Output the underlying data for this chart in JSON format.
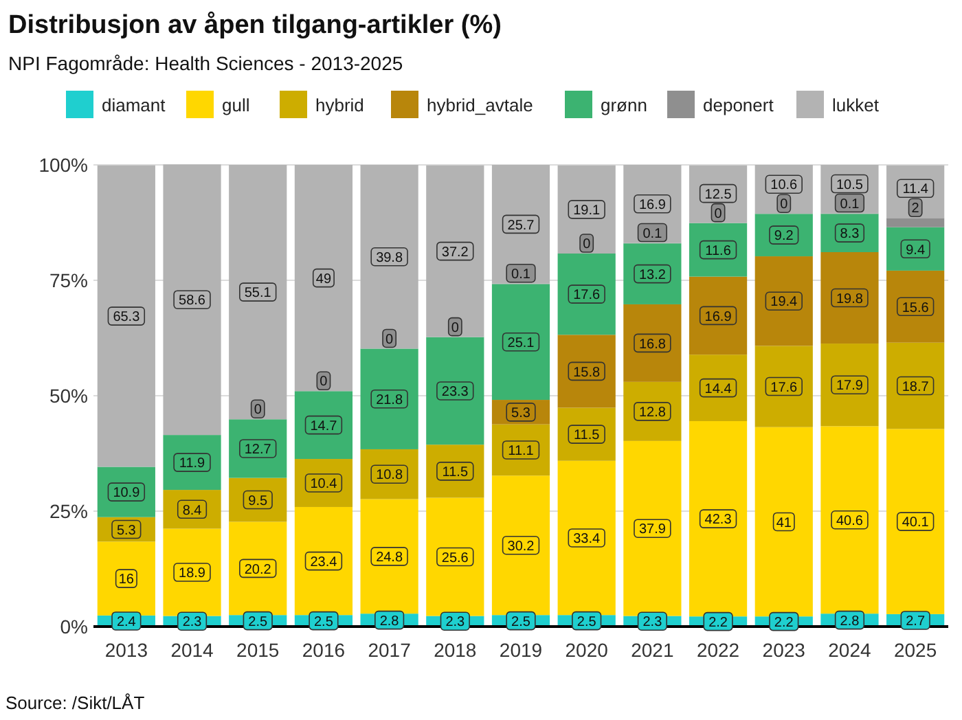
{
  "chart_data": {
    "type": "bar",
    "title": "Distribusjon av åpen tilgang-artikler (%)",
    "subtitle": "NPI Fagområde: Health Sciences - 2013-2025",
    "categories": [
      "2013",
      "2014",
      "2015",
      "2016",
      "2017",
      "2018",
      "2019",
      "2020",
      "2021",
      "2022",
      "2023",
      "2024",
      "2025"
    ],
    "series": [
      {
        "name": "diamant",
        "color": "#1fcfcf",
        "values": [
          2.4,
          2.3,
          2.5,
          2.5,
          2.8,
          2.3,
          2.5,
          2.5,
          2.3,
          2.2,
          2.2,
          2.8,
          2.7
        ]
      },
      {
        "name": "gull",
        "color": "#ffd700",
        "values": [
          16,
          18.9,
          20.2,
          23.4,
          24.8,
          25.6,
          30.2,
          33.4,
          37.9,
          42.3,
          41,
          40.6,
          40.1
        ]
      },
      {
        "name": "hybrid",
        "color": "#cdad00",
        "values": [
          5.3,
          8.4,
          9.5,
          10.4,
          10.8,
          11.5,
          11.1,
          11.5,
          12.8,
          14.4,
          17.6,
          17.9,
          18.7
        ]
      },
      {
        "name": "hybrid_avtale",
        "color": "#b8860b",
        "values": [
          null,
          null,
          null,
          null,
          null,
          null,
          5.3,
          15.8,
          16.8,
          16.9,
          19.4,
          19.8,
          15.6
        ]
      },
      {
        "name": "grønn",
        "color": "#3cb371",
        "values": [
          10.9,
          11.9,
          12.7,
          14.7,
          21.8,
          23.3,
          25.1,
          17.6,
          13.2,
          11.6,
          9.2,
          8.3,
          9.4
        ]
      },
      {
        "name": "deponert",
        "color": "#8f8f8f",
        "values": [
          null,
          null,
          0,
          0,
          0,
          0,
          0.1,
          0,
          0.1,
          0,
          0,
          0.1,
          2
        ],
        "value_labels": [
          null,
          null,
          "0",
          "0",
          "0",
          "0",
          "0.1",
          "0",
          "0.1",
          "0",
          "0",
          "0.1",
          "2"
        ]
      },
      {
        "name": "lukket",
        "color": "#b3b3b3",
        "values": [
          65.3,
          58.6,
          55.1,
          49,
          39.8,
          37.2,
          25.7,
          19.1,
          16.9,
          12.5,
          10.6,
          10.5,
          11.4
        ]
      }
    ],
    "stacked": true,
    "data_labels": true,
    "ylim": [
      0,
      100
    ],
    "yticks": [
      {
        "value": 0,
        "label": "0%"
      },
      {
        "value": 25,
        "label": "25%"
      },
      {
        "value": 50,
        "label": "50%"
      },
      {
        "value": 75,
        "label": "75%"
      },
      {
        "value": 100,
        "label": "100%"
      }
    ],
    "grid": "y",
    "legend": "top",
    "annotations": [
      "Source: /Sikt/LÅT"
    ]
  }
}
